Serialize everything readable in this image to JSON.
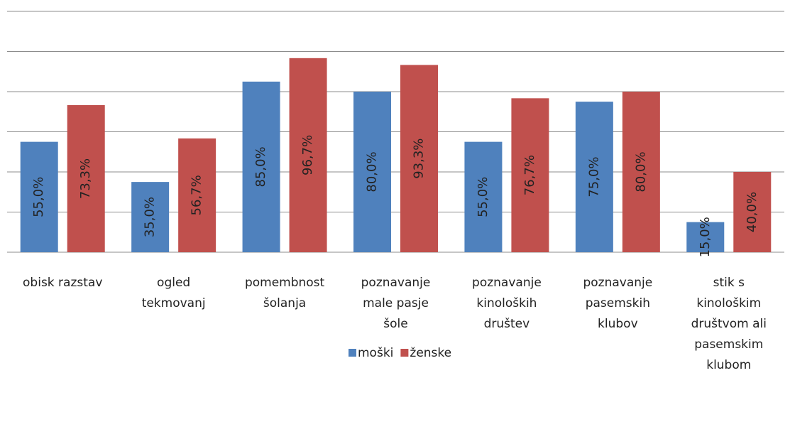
{
  "chart_data": {
    "type": "bar",
    "categories": [
      "obisk razstav",
      "ogled tekmovanj",
      "pomembnost šolanja",
      "poznavanje male pasje šole",
      "poznavanje kinoloških društev",
      "poznavanje pasemskih klubov",
      "stik s kinološkim društvom ali pasemskim klubom"
    ],
    "series": [
      {
        "name": "moški",
        "color": "#4f81bd",
        "values": [
          55.0,
          35.0,
          85.0,
          80.0,
          55.0,
          75.0,
          15.0
        ],
        "value_labels": [
          "55,0%",
          "35,0%",
          "85,0%",
          "80,0%",
          "55,0%",
          "75,0%",
          "15,0%"
        ]
      },
      {
        "name": "ženske",
        "color": "#c0504d",
        "values": [
          73.3,
          56.7,
          96.7,
          93.3,
          76.7,
          80.0,
          40.0
        ],
        "value_labels": [
          "73,3%",
          "56,7%",
          "96,7%",
          "93,3%",
          "76,7%",
          "80,0%",
          "40,0%"
        ]
      }
    ],
    "ylim": [
      0,
      120
    ],
    "yticks": [
      0,
      20,
      40,
      60,
      80,
      100,
      120
    ],
    "grid": true,
    "legend": "bottom"
  }
}
